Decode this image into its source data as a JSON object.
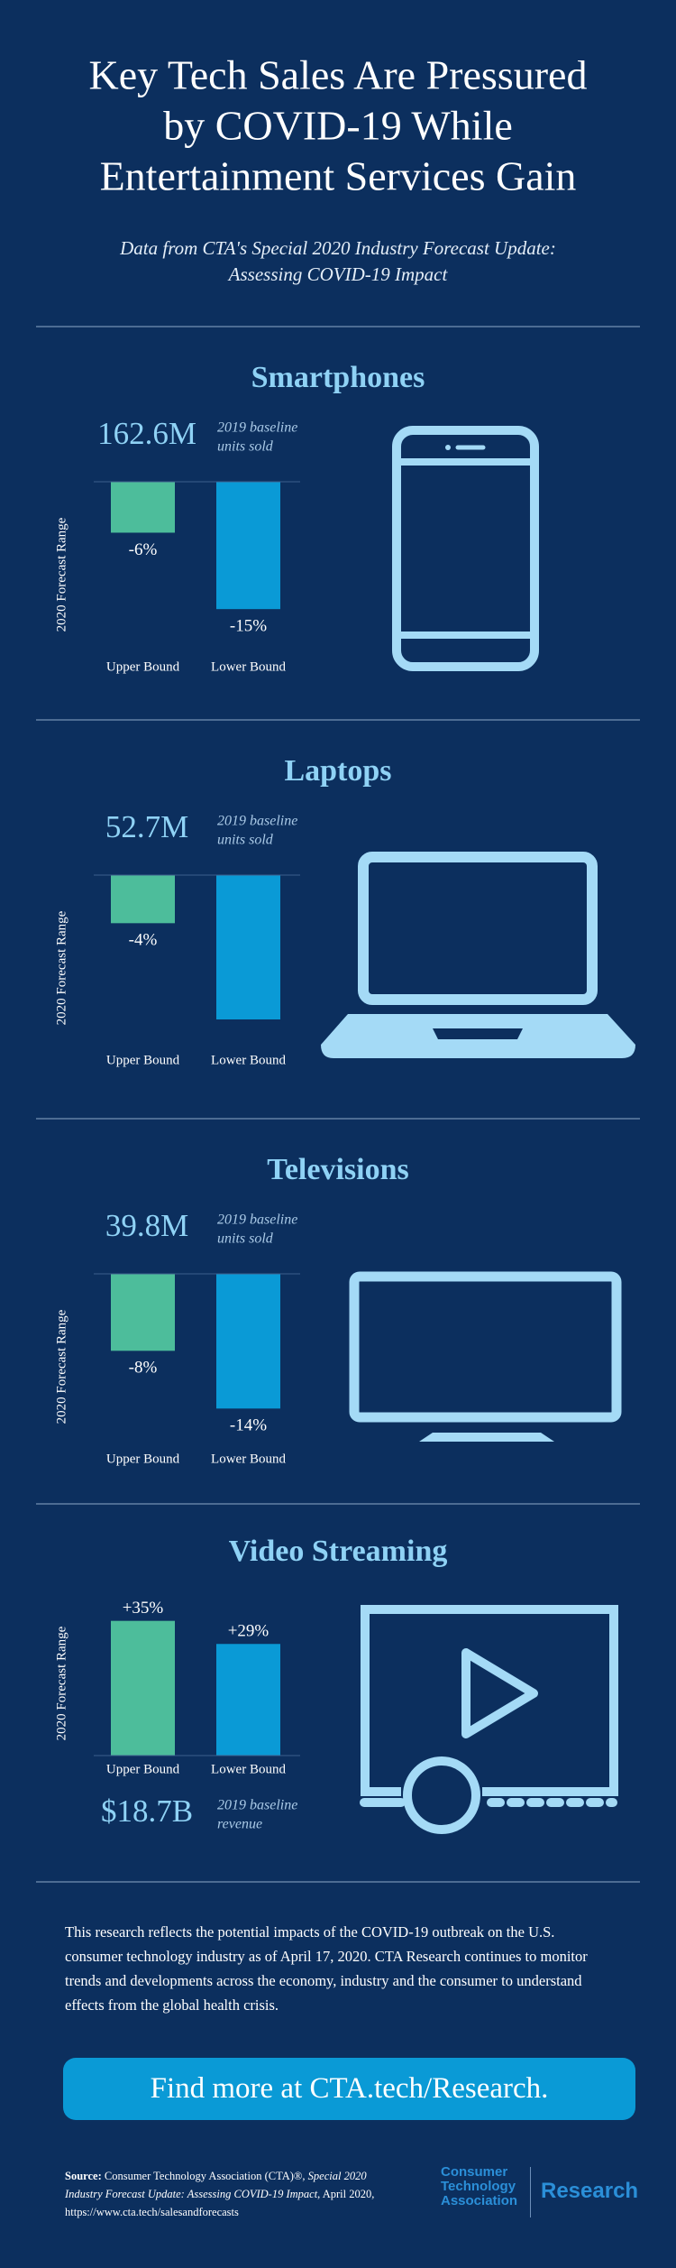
{
  "header": {
    "title_lines": [
      "Key Tech Sales Are Pressured",
      "by COVID-19 While",
      "Entertainment Services Gain"
    ],
    "subtitle_lines": [
      "Data from CTA's Special 2020 Industry Forecast Update:",
      "Assessing COVID-19 Impact"
    ]
  },
  "chart_data": [
    {
      "type": "bar",
      "title": "Smartphones",
      "y_label": "2020 Forecast Range",
      "baseline": "162.6M",
      "baseline_note": [
        "2019 baseline",
        "units sold"
      ],
      "categories": [
        "Upper Bound",
        "Lower Bound"
      ],
      "values": [
        -6,
        -15
      ],
      "value_labels": [
        "-6%",
        "-15%"
      ],
      "colors": [
        "#4dbd9b",
        "#0a9ad6"
      ],
      "ylim": [
        -17,
        0
      ]
    },
    {
      "type": "bar",
      "title": "Laptops",
      "y_label": "2020 Forecast Range",
      "baseline": "52.7M",
      "baseline_note": [
        "2019 baseline",
        "units sold"
      ],
      "categories": [
        "Upper Bound",
        "Lower Bound"
      ],
      "values": [
        -4,
        -12
      ],
      "value_labels": [
        "-4%",
        null
      ],
      "colors": [
        "#4dbd9b",
        "#0a9ad6"
      ],
      "ylim": [
        -12,
        0
      ]
    },
    {
      "type": "bar",
      "title": "Televisions",
      "y_label": "2020 Forecast Range",
      "baseline": "39.8M",
      "baseline_note": [
        "2019 baseline",
        "units sold"
      ],
      "categories": [
        "Upper Bound",
        "Lower Bound"
      ],
      "values": [
        -8,
        -14
      ],
      "value_labels": [
        "-8%",
        "-14%"
      ],
      "colors": [
        "#4dbd9b",
        "#0a9ad6"
      ],
      "ylim": [
        -15,
        0
      ]
    },
    {
      "type": "bar",
      "title": "Video Streaming",
      "y_label": "2020 Forecast Range",
      "baseline": "$18.7B",
      "baseline_note": [
        "2019 baseline",
        "revenue"
      ],
      "categories": [
        "Upper Bound",
        "Lower Bound"
      ],
      "values": [
        35,
        29
      ],
      "value_labels": [
        "+35%",
        "+29%"
      ],
      "colors": [
        "#4dbd9b",
        "#0a9ad6"
      ],
      "ylim": [
        0,
        37.5
      ]
    }
  ],
  "footer": {
    "text": "This research reflects the potential impacts of the COVID-19 outbreak on the U.S. consumer technology industry as of April 17, 2020. CTA Research continues to monitor trends and developments across the economy, industry and the consumer to understand effects from the global health crisis.",
    "button": "Find more at CTA.tech/Research.",
    "source": {
      "label": "Source:",
      "publisher": " Consumer Technology Association (CTA)®, ",
      "publication": "Special 2020 Industry Forecast Update: Assessing COVID-19 Impact",
      "details": ", April 2020, https://www.cta.tech/salesandforecasts"
    },
    "logo": {
      "lines": [
        "Consumer",
        "Technology",
        "Association"
      ],
      "research": "Research"
    }
  }
}
